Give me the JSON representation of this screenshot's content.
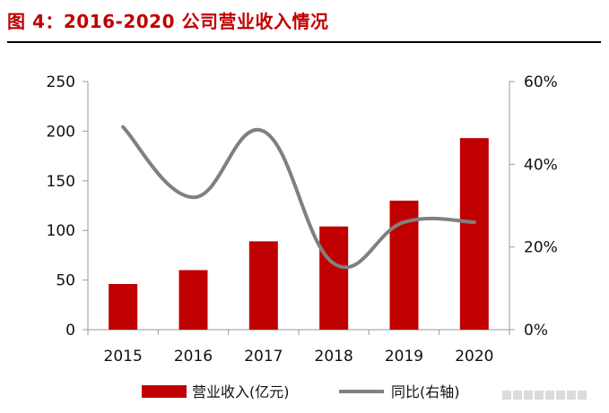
{
  "header": {
    "title": "图 4：2016-2020 公司营业收入情况"
  },
  "chart_data": {
    "type": "bar",
    "categories": [
      "2015",
      "2016",
      "2017",
      "2018",
      "2019",
      "2020"
    ],
    "series": [
      {
        "name": "营业收入(亿元)",
        "type": "bar",
        "axis": "left",
        "values": [
          46,
          60,
          89,
          104,
          130,
          193
        ],
        "color": "#c00000"
      },
      {
        "name": "同比(右轴)",
        "type": "line",
        "smooth": true,
        "axis": "right",
        "values": [
          49,
          32,
          48,
          16,
          26,
          26
        ],
        "unit": "%",
        "color": "#808080"
      }
    ],
    "ylim": [
      0,
      250
    ],
    "yticks": [
      "0",
      "50",
      "100",
      "150",
      "200",
      "250"
    ],
    "y2lim": [
      0,
      60
    ],
    "y2ticks": [
      "0%",
      "20%",
      "40%",
      "60%"
    ],
    "grid": false,
    "legend": "bottom"
  }
}
